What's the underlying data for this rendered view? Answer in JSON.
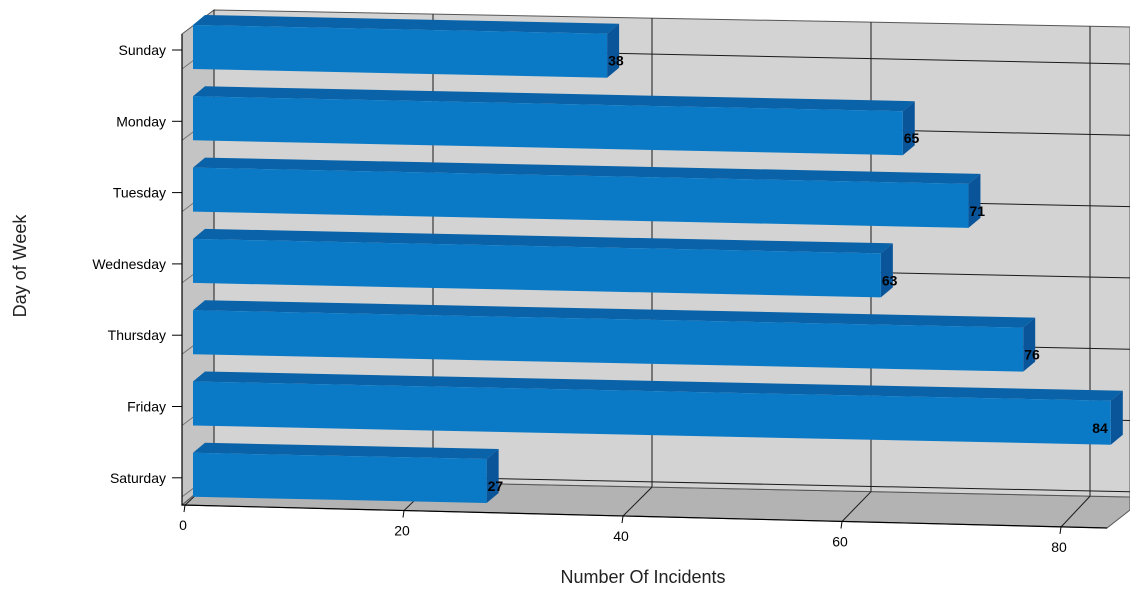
{
  "chart_data": {
    "type": "bar",
    "orientation": "horizontal",
    "style": "3d",
    "categories": [
      "Sunday",
      "Monday",
      "Tuesday",
      "Wednesday",
      "Thursday",
      "Friday",
      "Saturday"
    ],
    "values": [
      38,
      65,
      71,
      63,
      76,
      84,
      27
    ],
    "xlabel": "Number Of Incidents",
    "ylabel": "Day of Week",
    "xlim": [
      0,
      84
    ],
    "xticks": [
      "0",
      "20",
      "40",
      "60",
      "80"
    ],
    "data_labels": [
      "38",
      "65",
      "71",
      "63",
      "76",
      "84",
      "27"
    ],
    "grid": true,
    "colors": {
      "bar_front": "#0a7ac7",
      "bar_top": "#0a62a8",
      "bar_side": "#0a559a",
      "wall": "#d3d3d3",
      "floor": "#b3b3b3",
      "gridline": "#1a1a1a"
    }
  }
}
